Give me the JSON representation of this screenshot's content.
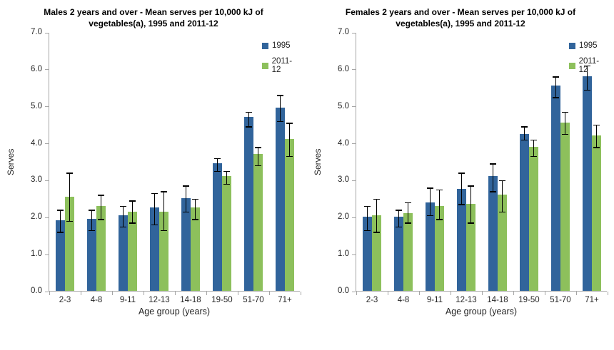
{
  "figure": {
    "background": "#FFFFFF"
  },
  "colors": {
    "series_1995": "#31649B",
    "series_2011_12": "#8DC05C",
    "axis_line": "#A6A6A6",
    "error_bar": "#000000",
    "text": "#262626",
    "title_text": "#000000"
  },
  "chart_data": [
    {
      "type": "bar",
      "title": "Males 2 years and over - Mean serves per 10,000 kJ of vegetables(a), 1995 and 2011-12",
      "xlabel": "Age group (years)",
      "ylabel": "Serves",
      "ylim": [
        0,
        7
      ],
      "ytick_step": 1,
      "grid": false,
      "legend_position": "top-right",
      "legend_entries": [
        "1995",
        "2011-12"
      ],
      "error_bars": true,
      "categories": [
        "2-3",
        "4-8",
        "9-11",
        "12-13",
        "14-18",
        "19-50",
        "51-70",
        "71+"
      ],
      "series": [
        {
          "name": "1995",
          "color": "#31649B",
          "values": [
            1.9,
            1.95,
            2.05,
            2.25,
            2.5,
            3.45,
            4.7,
            4.95
          ],
          "error_lower": [
            1.6,
            1.65,
            1.75,
            1.8,
            2.15,
            3.25,
            4.45,
            4.6
          ],
          "error_upper": [
            2.2,
            2.2,
            2.3,
            2.65,
            2.85,
            3.6,
            4.85,
            5.3
          ]
        },
        {
          "name": "2011-12",
          "color": "#8DC05C",
          "values": [
            2.55,
            2.3,
            2.15,
            2.15,
            2.25,
            3.1,
            3.7,
            4.1
          ],
          "error_lower": [
            1.9,
            1.95,
            1.85,
            1.65,
            1.95,
            2.9,
            3.4,
            3.65
          ],
          "error_upper": [
            3.2,
            2.6,
            2.45,
            2.7,
            2.5,
            3.25,
            3.9,
            4.55
          ]
        }
      ]
    },
    {
      "type": "bar",
      "title": "Females 2 years and over - Mean serves per 10,000 kJ of vegetables(a), 1995 and 2011-12",
      "xlabel": "Age group (years)",
      "ylabel": "Serves",
      "ylim": [
        0,
        7
      ],
      "ytick_step": 1,
      "grid": false,
      "legend_position": "top-right",
      "legend_entries": [
        "1995",
        "2011-12"
      ],
      "error_bars": true,
      "categories": [
        "2-3",
        "4-8",
        "9-11",
        "12-13",
        "14-18",
        "19-50",
        "51-70",
        "71+"
      ],
      "series": [
        {
          "name": "1995",
          "color": "#31649B",
          "values": [
            2.0,
            2.0,
            2.4,
            2.75,
            3.1,
            4.25,
            5.55,
            5.8
          ],
          "error_lower": [
            1.65,
            1.75,
            2.05,
            2.35,
            2.7,
            4.1,
            5.25,
            5.45
          ],
          "error_upper": [
            2.3,
            2.2,
            2.8,
            3.2,
            3.45,
            4.45,
            5.8,
            6.1
          ]
        },
        {
          "name": "2011-12",
          "color": "#8DC05C",
          "values": [
            2.05,
            2.1,
            2.3,
            2.35,
            2.6,
            3.9,
            4.55,
            4.2
          ],
          "error_lower": [
            1.6,
            1.85,
            1.95,
            1.85,
            2.15,
            3.65,
            4.25,
            3.9
          ],
          "error_upper": [
            2.5,
            2.4,
            2.75,
            2.85,
            3.0,
            4.1,
            4.85,
            4.5
          ]
        }
      ]
    }
  ]
}
